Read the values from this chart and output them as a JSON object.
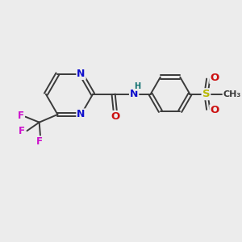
{
  "bg_color": "#ececec",
  "bond_color": "#3a3a3a",
  "bond_width": 1.4,
  "atom_colors": {
    "N": "#1010cc",
    "O": "#cc1010",
    "F": "#cc10cc",
    "S": "#b8b800",
    "C": "#3a3a3a",
    "H": "#107070"
  },
  "font_size": 8.5,
  "fig_size": [
    3.0,
    3.0
  ],
  "dpi": 100,
  "xlim": [
    0,
    10
  ],
  "ylim": [
    0,
    10
  ]
}
